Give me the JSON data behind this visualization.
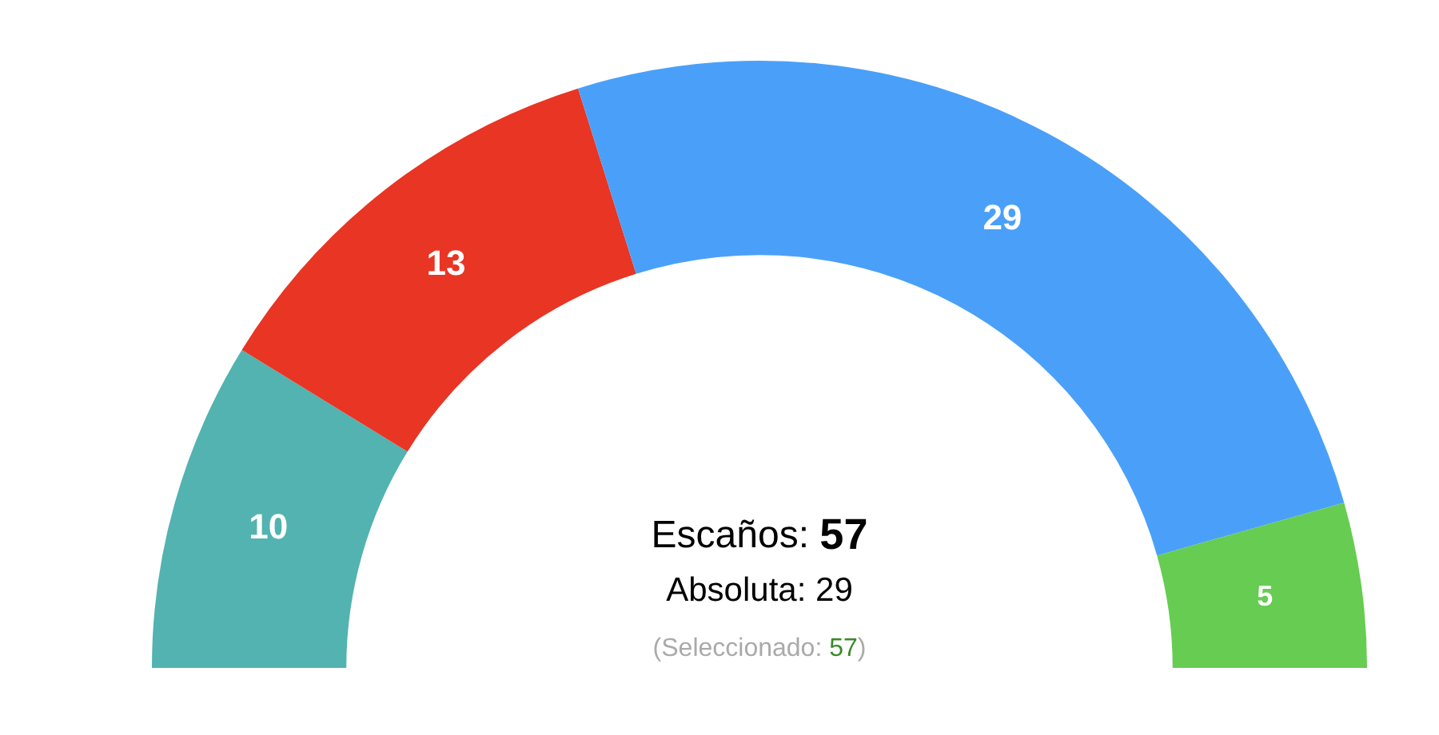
{
  "chart_data": {
    "type": "donut",
    "categories": [
      null,
      null,
      null,
      null
    ],
    "values": [
      10,
      13,
      29,
      5
    ],
    "colors": [
      "#52b3b0",
      "#e83524",
      "#4aa0f8",
      "#66cc52"
    ],
    "data_labels": true,
    "legend": false,
    "annotations": [
      "Escaños: 57",
      "Absoluta: 29",
      "(Seleccionado: 57)"
    ]
  }
}
